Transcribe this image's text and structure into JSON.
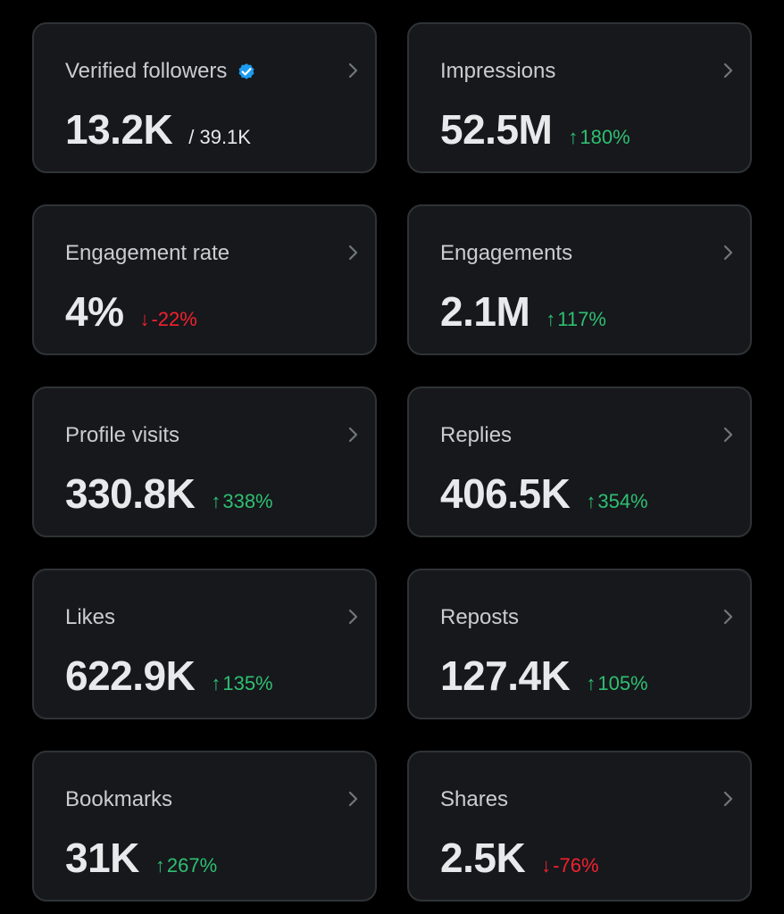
{
  "colors": {
    "background": "#000000",
    "card_background": "#16181c",
    "card_border": "#2f3336",
    "label": "#c9cdd1",
    "value": "#e7e9ea",
    "up": "#2fbf71",
    "down": "#f4212e",
    "verified": "#1d9bf0"
  },
  "cards": [
    {
      "label": "Verified followers",
      "value": "13.2K",
      "sub": "/ 39.1K",
      "icon": "verified-badge-icon"
    },
    {
      "label": "Impressions",
      "value": "52.5M",
      "trend_arrow": "↑",
      "trend_value": "180%",
      "trend_dir": "up"
    },
    {
      "label": "Engagement rate",
      "value": "4%",
      "trend_arrow": "↓",
      "trend_value": "-22%",
      "trend_dir": "down"
    },
    {
      "label": "Engagements",
      "value": "2.1M",
      "trend_arrow": "↑",
      "trend_value": "117%",
      "trend_dir": "up"
    },
    {
      "label": "Profile visits",
      "value": "330.8K",
      "trend_arrow": "↑",
      "trend_value": "338%",
      "trend_dir": "up"
    },
    {
      "label": "Replies",
      "value": "406.5K",
      "trend_arrow": "↑",
      "trend_value": "354%",
      "trend_dir": "up"
    },
    {
      "label": "Likes",
      "value": "622.9K",
      "trend_arrow": "↑",
      "trend_value": "135%",
      "trend_dir": "up"
    },
    {
      "label": "Reposts",
      "value": "127.4K",
      "trend_arrow": "↑",
      "trend_value": "105%",
      "trend_dir": "up"
    },
    {
      "label": "Bookmarks",
      "value": "31K",
      "trend_arrow": "↑",
      "trend_value": "267%",
      "trend_dir": "up"
    },
    {
      "label": "Shares",
      "value": "2.5K",
      "trend_arrow": "↓",
      "trend_value": "-76%",
      "trend_dir": "down"
    }
  ]
}
